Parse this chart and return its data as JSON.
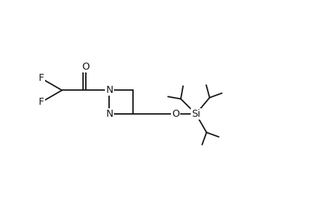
{
  "bg": "#ffffff",
  "lc": "#1a1a1a",
  "lw": 1.4,
  "fs": 10,
  "ff": "DejaVu Sans",
  "xlim": [
    0.0,
    9.5
  ],
  "ylim": [
    0.5,
    5.0
  ],
  "figsize": [
    4.6,
    3.0
  ],
  "dpi": 100
}
